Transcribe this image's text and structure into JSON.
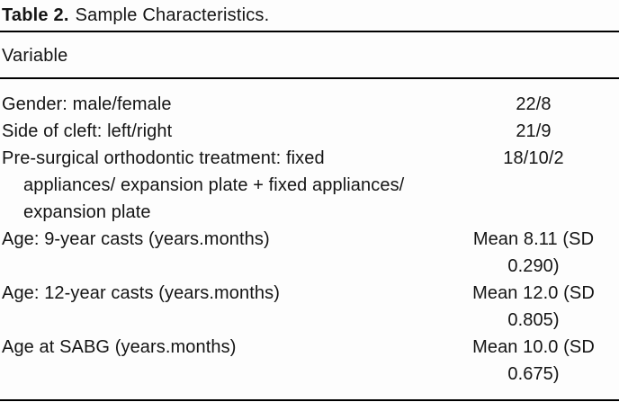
{
  "title": {
    "label": "Table 2.",
    "text": "Sample Characteristics."
  },
  "table": {
    "header": "Variable",
    "rows": [
      {
        "label_lines": [
          "Gender: male/female"
        ],
        "value_lines": [
          "22/8"
        ]
      },
      {
        "label_lines": [
          "Side of cleft: left/right"
        ],
        "value_lines": [
          "21/9"
        ]
      },
      {
        "label_lines": [
          "Pre-surgical orthodontic treatment: fixed",
          "appliances/ expansion plate + fixed appliances/",
          "expansion plate"
        ],
        "value_lines": [
          "18/10/2"
        ]
      },
      {
        "label_lines": [
          "Age: 9-year casts (years.months)"
        ],
        "value_lines": [
          "Mean 8.11 (SD",
          "0.290)"
        ]
      },
      {
        "label_lines": [
          "Age: 12-year casts (years.months)"
        ],
        "value_lines": [
          "Mean 12.0 (SD",
          "0.805)"
        ]
      },
      {
        "label_lines": [
          "Age at SABG (years.months)"
        ],
        "value_lines": [
          "Mean 10.0 (SD",
          "0.675)"
        ]
      }
    ]
  },
  "colors": {
    "text": "#141414",
    "rule": "#000000",
    "background": "#fdfdfd"
  }
}
